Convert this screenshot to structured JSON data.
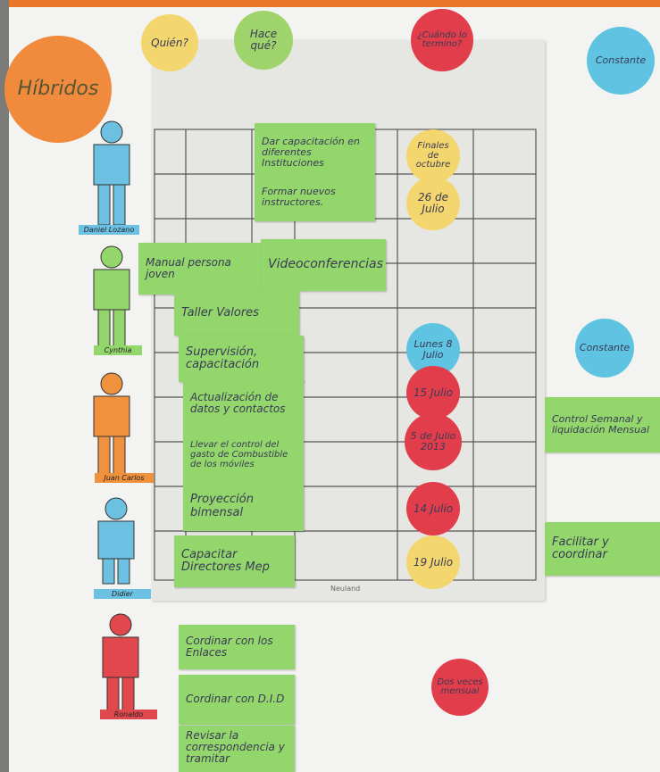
{
  "header": {
    "title": "Híbridos",
    "columns": [
      "Quién?",
      "Hace qué?",
      "¿Cuándo lo termino?"
    ],
    "status": "Constante"
  },
  "people": [
    "Daniel Lozano",
    "Cynthia",
    "Juan Carlos",
    "Didier",
    "Ronaldo"
  ],
  "notes": [
    "Dar capacitación en diferentes Instituciones",
    "Formar nuevos instructores.",
    "Manual persona joven",
    "Videoconferencias",
    "Taller Valores",
    "Supervisión, capacitación",
    "Actualización de datos y contactos",
    "Llevar el control del gasto de Combustible de los móviles",
    "Proyección bimensal",
    "Capacitar Directores Mep",
    "Cordinar con los Enlaces",
    "Cordinar con D.I.D",
    "Revisar la correspondencia y tramitar",
    "Control Semanal y liquidación Mensual",
    "Facilitar y coordinar"
  ],
  "dates": [
    "Finales de octubre",
    "26 de Julio",
    "Lunes 8 Julio",
    "15 Julio",
    "5 de Julio 2013",
    "14 Julio",
    "19 Julio",
    "Constante",
    "Dos veces mensual"
  ],
  "brand": "Neuland"
}
